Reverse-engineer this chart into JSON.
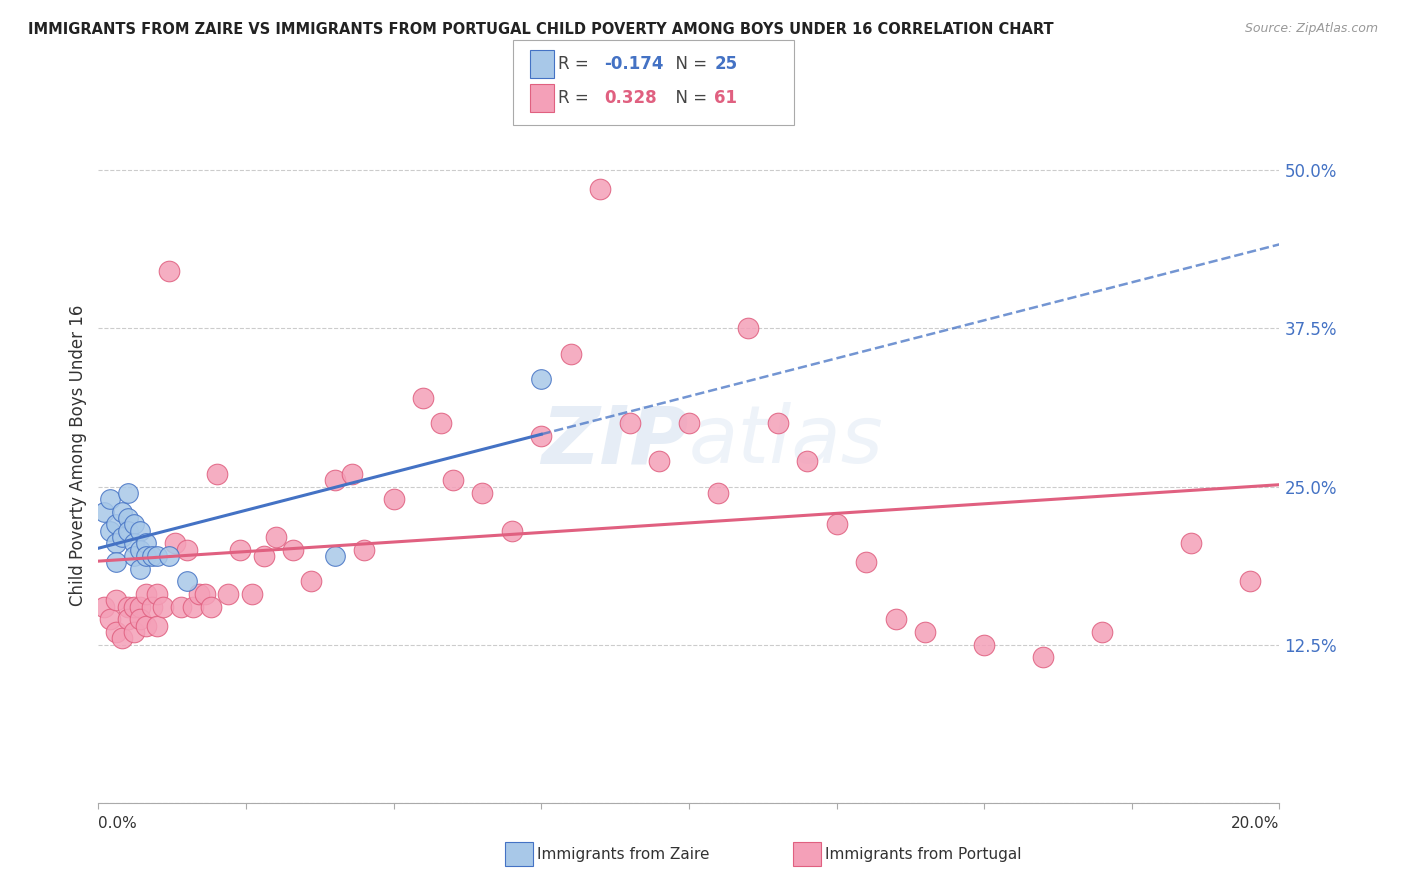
{
  "title": "IMMIGRANTS FROM ZAIRE VS IMMIGRANTS FROM PORTUGAL CHILD POVERTY AMONG BOYS UNDER 16 CORRELATION CHART",
  "source": "Source: ZipAtlas.com",
  "ylabel": "Child Poverty Among Boys Under 16",
  "xlim": [
    0.0,
    0.2
  ],
  "ylim": [
    0.0,
    0.55
  ],
  "yticks": [
    0.0,
    0.125,
    0.25,
    0.375,
    0.5
  ],
  "ytick_labels": [
    "",
    "12.5%",
    "25.0%",
    "37.5%",
    "50.0%"
  ],
  "watermark": "ZIPatlas",
  "zaire_color": "#a8c8e8",
  "portugal_color": "#f4a0b8",
  "zaire_line_color": "#4472c4",
  "portugal_line_color": "#e06080",
  "zaire_scatter_x": [
    0.001,
    0.002,
    0.002,
    0.003,
    0.003,
    0.003,
    0.004,
    0.004,
    0.005,
    0.005,
    0.005,
    0.006,
    0.006,
    0.006,
    0.007,
    0.007,
    0.007,
    0.008,
    0.008,
    0.009,
    0.01,
    0.012,
    0.015,
    0.04,
    0.075
  ],
  "zaire_scatter_y": [
    0.23,
    0.24,
    0.215,
    0.22,
    0.205,
    0.19,
    0.23,
    0.21,
    0.245,
    0.225,
    0.215,
    0.22,
    0.205,
    0.195,
    0.215,
    0.2,
    0.185,
    0.205,
    0.195,
    0.195,
    0.195,
    0.195,
    0.175,
    0.195,
    0.335
  ],
  "portugal_scatter_x": [
    0.001,
    0.002,
    0.003,
    0.003,
    0.004,
    0.005,
    0.005,
    0.006,
    0.006,
    0.007,
    0.007,
    0.008,
    0.008,
    0.009,
    0.01,
    0.01,
    0.011,
    0.012,
    0.013,
    0.014,
    0.015,
    0.016,
    0.017,
    0.018,
    0.019,
    0.02,
    0.022,
    0.024,
    0.026,
    0.028,
    0.03,
    0.033,
    0.036,
    0.04,
    0.043,
    0.045,
    0.05,
    0.055,
    0.058,
    0.06,
    0.065,
    0.07,
    0.075,
    0.08,
    0.085,
    0.09,
    0.095,
    0.1,
    0.105,
    0.11,
    0.115,
    0.12,
    0.125,
    0.13,
    0.135,
    0.14,
    0.15,
    0.16,
    0.17,
    0.185,
    0.195
  ],
  "portugal_scatter_y": [
    0.155,
    0.145,
    0.135,
    0.16,
    0.13,
    0.155,
    0.145,
    0.155,
    0.135,
    0.155,
    0.145,
    0.165,
    0.14,
    0.155,
    0.165,
    0.14,
    0.155,
    0.42,
    0.205,
    0.155,
    0.2,
    0.155,
    0.165,
    0.165,
    0.155,
    0.26,
    0.165,
    0.2,
    0.165,
    0.195,
    0.21,
    0.2,
    0.175,
    0.255,
    0.26,
    0.2,
    0.24,
    0.32,
    0.3,
    0.255,
    0.245,
    0.215,
    0.29,
    0.355,
    0.485,
    0.3,
    0.27,
    0.3,
    0.245,
    0.375,
    0.3,
    0.27,
    0.22,
    0.19,
    0.145,
    0.135,
    0.125,
    0.115,
    0.135,
    0.205,
    0.175
  ],
  "background_color": "#ffffff",
  "grid_color": "#cccccc",
  "xtick_positions": [
    0.0,
    0.025,
    0.05,
    0.075,
    0.1,
    0.125,
    0.15,
    0.175,
    0.2
  ]
}
